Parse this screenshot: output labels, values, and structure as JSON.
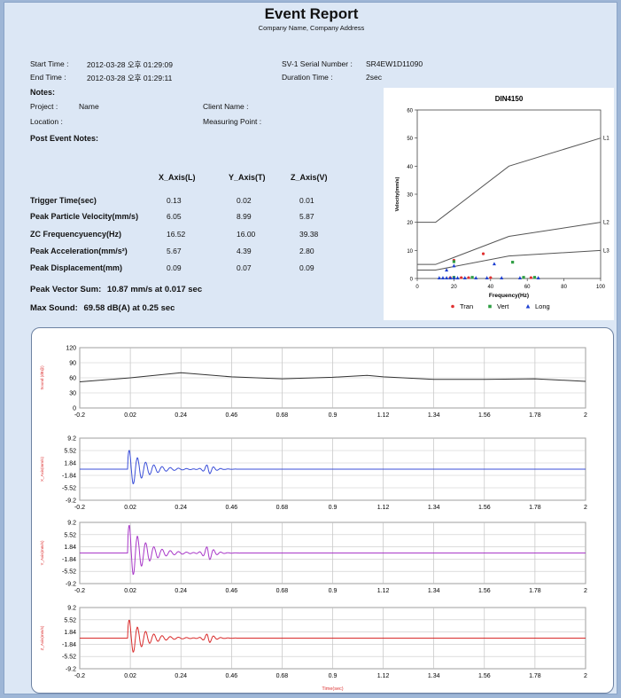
{
  "header": {
    "title": "Event Report",
    "subtitle": "Company Name, Company Address"
  },
  "info": {
    "start_time_label": "Start Time :",
    "start_time_value": "2012-03-28 오후 01:29:09",
    "end_time_label": "End Time :",
    "end_time_value": "2012-03-28 오후 01:29:11",
    "serial_label": "SV-1 Serial Number :",
    "serial_value": "SR4EW1D11090",
    "duration_label": "Duration Time :",
    "duration_value": "2sec"
  },
  "notes": {
    "heading": "Notes:",
    "project_label": "Project :",
    "project_value": "Name",
    "client_label": "Client Name :",
    "location_label": "Location :",
    "measuring_label": "Measuring Point :",
    "post_event": "Post Event Notes:"
  },
  "table": {
    "headers": [
      "X_Axis(L)",
      "Y_Axis(T)",
      "Z_Axis(V)"
    ],
    "rows": [
      {
        "label": "Trigger Time(sec)",
        "values": [
          "0.13",
          "0.02",
          "0.01"
        ]
      },
      {
        "label": "Peak Particle Velocity(mm/s)",
        "values": [
          "6.05",
          "8.99",
          "5.87"
        ]
      },
      {
        "label": "ZC Frequencyuency(Hz)",
        "values": [
          "16.52",
          "16.00",
          "39.38"
        ]
      },
      {
        "label": "Peak Acceleration(mm/s²)",
        "values": [
          "5.67",
          "4.39",
          "2.80"
        ]
      },
      {
        "label": "Peak Displacement(mm)",
        "values": [
          "0.09",
          "0.07",
          "0.09"
        ]
      }
    ]
  },
  "summary": {
    "pvs_label": "Peak Vector Sum:",
    "pvs_value": "10.87 mm/s at 0.017 sec",
    "sound_label": "Max Sound:",
    "sound_value": "69.58 dB(A) at 0.25 sec"
  },
  "colors": {
    "tran": "#e03131",
    "vert": "#2f9e44",
    "long": "#1c3fd1",
    "x_wave": "#3b4fd8",
    "y_wave": "#a838c8",
    "z_wave": "#d92c2c"
  },
  "chart_data": [
    {
      "type": "scatter",
      "title": "DIN4150",
      "xlabel": "Frequency(Hz)",
      "ylabel": "Velocity(mm/s)",
      "xlim": [
        0,
        100
      ],
      "ylim": [
        0,
        60
      ],
      "xticks": [
        "0",
        "20",
        "40",
        "60",
        "80",
        "100"
      ],
      "yticks": [
        "0",
        "10",
        "20",
        "30",
        "40",
        "50",
        "60"
      ],
      "legend": [
        "Tran",
        "Vert",
        "Long"
      ],
      "legend_position": "bottom",
      "limit_lines": [
        {
          "name": "L1",
          "x": [
            0,
            10,
            50,
            100
          ],
          "y": [
            20,
            20,
            40,
            50
          ]
        },
        {
          "name": "L2",
          "x": [
            0,
            10,
            50,
            100
          ],
          "y": [
            5,
            5,
            15,
            20
          ]
        },
        {
          "name": "L3",
          "x": [
            0,
            10,
            50,
            100
          ],
          "y": [
            3,
            3,
            8,
            10
          ]
        }
      ],
      "series": [
        {
          "name": "Tran",
          "points": [
            [
              20,
              6.5
            ],
            [
              36,
              8.8
            ],
            [
              18,
              0.3
            ],
            [
              24,
              0.3
            ],
            [
              28,
              0.3
            ],
            [
              40,
              0.3
            ],
            [
              62,
              0.3
            ]
          ]
        },
        {
          "name": "Vert",
          "points": [
            [
              20,
              6.0
            ],
            [
              52,
              5.8
            ],
            [
              20,
              0.4
            ],
            [
              30,
              0.4
            ],
            [
              58,
              0.4
            ],
            [
              64,
              0.4
            ]
          ]
        },
        {
          "name": "Long",
          "points": [
            [
              20,
              4.5
            ],
            [
              42,
              5.2
            ],
            [
              16,
              3.0
            ],
            [
              12,
              0.2
            ],
            [
              14,
              0.2
            ],
            [
              16,
              0.2
            ],
            [
              18,
              0.2
            ],
            [
              20,
              0.2
            ],
            [
              22,
              0.2
            ],
            [
              26,
              0.2
            ],
            [
              32,
              0.2
            ],
            [
              38,
              0.2
            ],
            [
              46,
              0.2
            ],
            [
              56,
              0.2
            ],
            [
              66,
              0.2
            ]
          ]
        }
      ]
    },
    {
      "type": "line",
      "ylabel": "Sound (dB@)",
      "xlim": [
        -0.2,
        2
      ],
      "ylim": [
        0,
        120
      ],
      "xticks": [
        "-0.2",
        "0.02",
        "0.24",
        "0.46",
        "0.68",
        "0.9",
        "1.12",
        "1.34",
        "1.56",
        "1.78",
        "2"
      ],
      "yticks": [
        "0",
        "30",
        "60",
        "90",
        "120"
      ],
      "x": [
        -0.2,
        0.02,
        0.24,
        0.46,
        0.68,
        0.9,
        1.05,
        1.12,
        1.34,
        1.56,
        1.78,
        2
      ],
      "y": [
        52,
        60,
        70,
        62,
        58,
        61,
        65,
        62,
        57,
        57,
        58,
        53
      ]
    },
    {
      "type": "line",
      "ylabel": "X_Axis(mm/s)",
      "color_key": "x_wave",
      "xlim": [
        -0.2,
        2
      ],
      "ylim": [
        -9.2,
        9.2
      ],
      "xticks": [
        "-0.2",
        "0.02",
        "0.24",
        "0.46",
        "0.68",
        "0.9",
        "1.12",
        "1.34",
        "1.56",
        "1.78",
        "2"
      ],
      "yticks": [
        "9.2",
        "5.52",
        "1.84",
        "-1.84",
        "-5.52",
        "-9.2"
      ],
      "peak": 6.05
    },
    {
      "type": "line",
      "ylabel": "Y_Axis(mm/s)",
      "color_key": "y_wave",
      "xlim": [
        -0.2,
        2
      ],
      "ylim": [
        -9.2,
        9.2
      ],
      "xticks": [
        "-0.2",
        "0.02",
        "0.24",
        "0.46",
        "0.68",
        "0.9",
        "1.12",
        "1.34",
        "1.56",
        "1.78",
        "2"
      ],
      "yticks": [
        "9.2",
        "5.52",
        "1.84",
        "-1.84",
        "-5.52",
        "-9.2"
      ],
      "peak": 8.99
    },
    {
      "type": "line",
      "ylabel": "Z_Axis(mm/s)",
      "xlabel": "Time(sec)",
      "color_key": "z_wave",
      "xlim": [
        -0.2,
        2
      ],
      "ylim": [
        -9.2,
        9.2
      ],
      "xticks": [
        "-0.2",
        "0.02",
        "0.24",
        "0.46",
        "0.68",
        "0.9",
        "1.12",
        "1.34",
        "1.56",
        "1.78",
        "2"
      ],
      "yticks": [
        "9.2",
        "5.52",
        "1.84",
        "-1.84",
        "-5.52",
        "-9.2"
      ],
      "peak": 5.87
    }
  ]
}
